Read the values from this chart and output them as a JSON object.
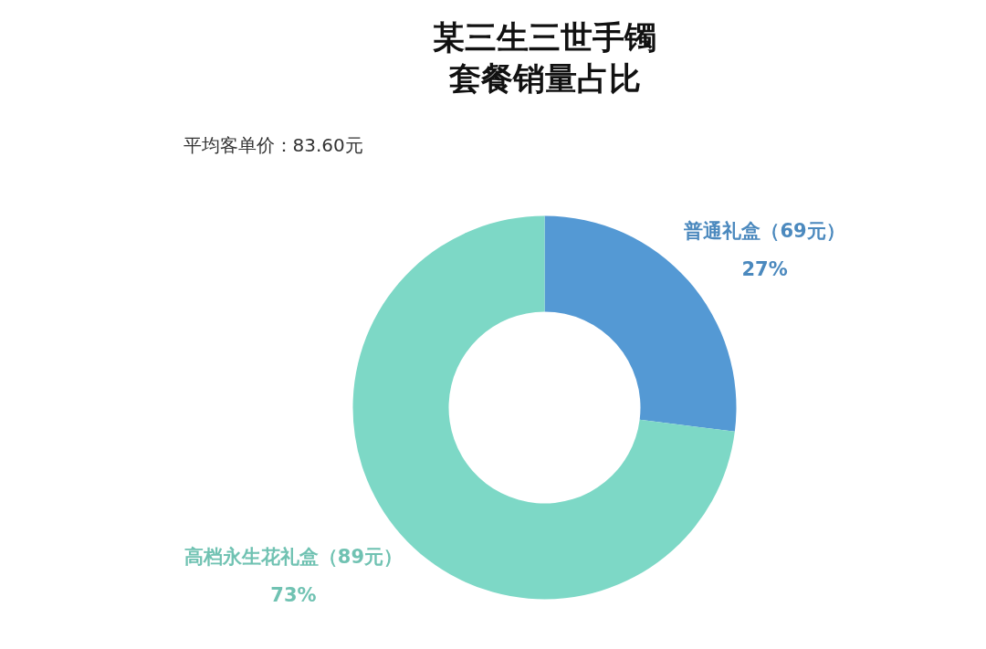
{
  "chart_data": {
    "type": "donut",
    "title": "某三生三世手镯套餐销量占比",
    "annotations": [
      "平均客单价：83.60元"
    ],
    "categories": [
      "普通礼盒（69元）",
      "高档永生花礼盒（89元）"
    ],
    "values": [
      27,
      73
    ],
    "colors": [
      "#5499d4",
      "#7dd8c6"
    ],
    "value_labels": [
      "27%",
      "73%"
    ]
  }
}
